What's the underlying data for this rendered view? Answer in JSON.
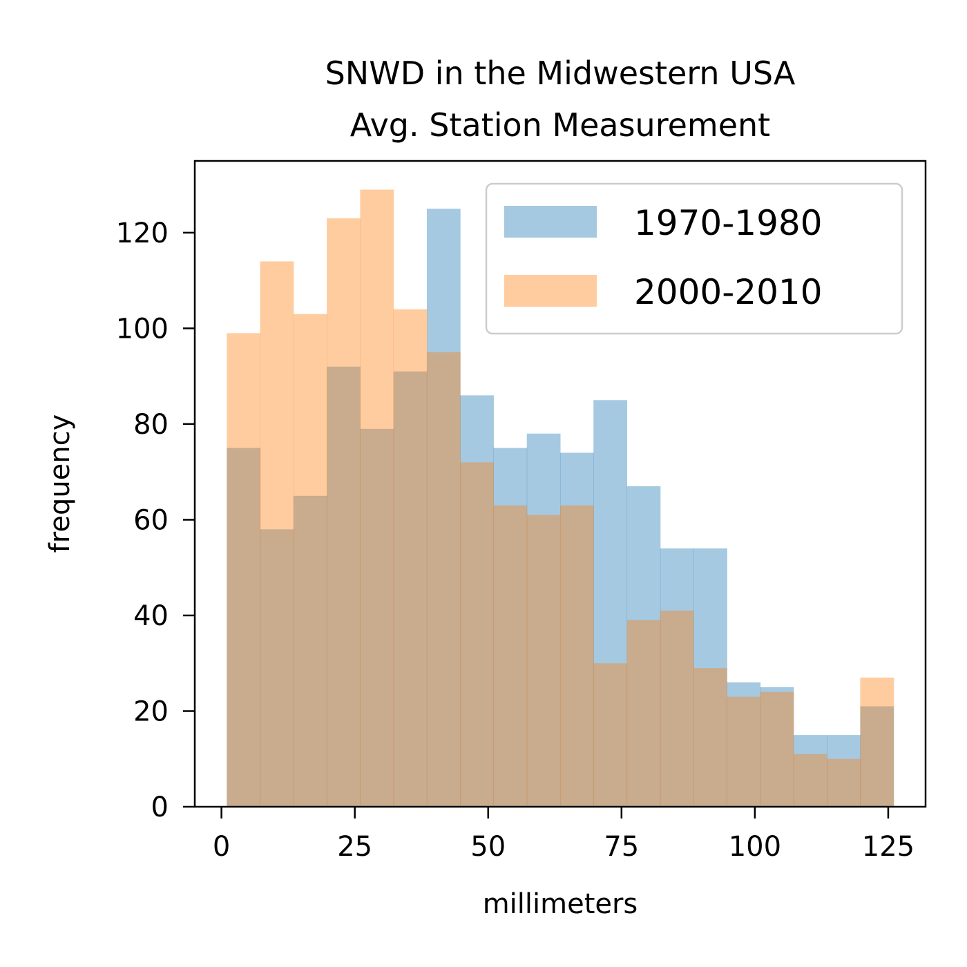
{
  "chart_data": {
    "type": "bar",
    "subtype": "histogram",
    "title_lines": [
      "SNWD in the Midwestern USA",
      "Avg. Station Measurement"
    ],
    "xlabel": "millimeters",
    "ylabel": "frequency",
    "xlim": [
      -5,
      132
    ],
    "ylim": [
      0,
      135
    ],
    "x_ticks": [
      0,
      25,
      50,
      75,
      100,
      125
    ],
    "x_tick_labels": [
      "0",
      "25",
      "50",
      "75",
      "100",
      "125"
    ],
    "y_ticks": [
      0,
      20,
      40,
      60,
      80,
      100,
      120
    ],
    "y_tick_labels": [
      "0",
      "20",
      "40",
      "60",
      "80",
      "100",
      "120"
    ],
    "bin_edges": [
      1,
      7.25,
      13.5,
      19.75,
      26,
      32.25,
      38.5,
      44.75,
      51,
      57.25,
      63.5,
      69.75,
      76,
      82.25,
      88.5,
      94.75,
      101,
      107.25,
      113.5,
      119.75,
      126
    ],
    "series": [
      {
        "name": "1970-1980",
        "color": "#1f77b4",
        "opacity": 0.4,
        "values": [
          75,
          58,
          65,
          92,
          79,
          91,
          125,
          86,
          75,
          78,
          74,
          85,
          67,
          54,
          54,
          26,
          25,
          15,
          15,
          21
        ]
      },
      {
        "name": "2000-2010",
        "color": "#ff7f0e",
        "opacity": 0.4,
        "values": [
          99,
          114,
          103,
          123,
          129,
          104,
          95,
          72,
          63,
          61,
          63,
          30,
          39,
          41,
          29,
          23,
          24,
          11,
          10,
          27
        ]
      }
    ],
    "grid": false,
    "legend": {
      "placement": "top-right"
    }
  }
}
